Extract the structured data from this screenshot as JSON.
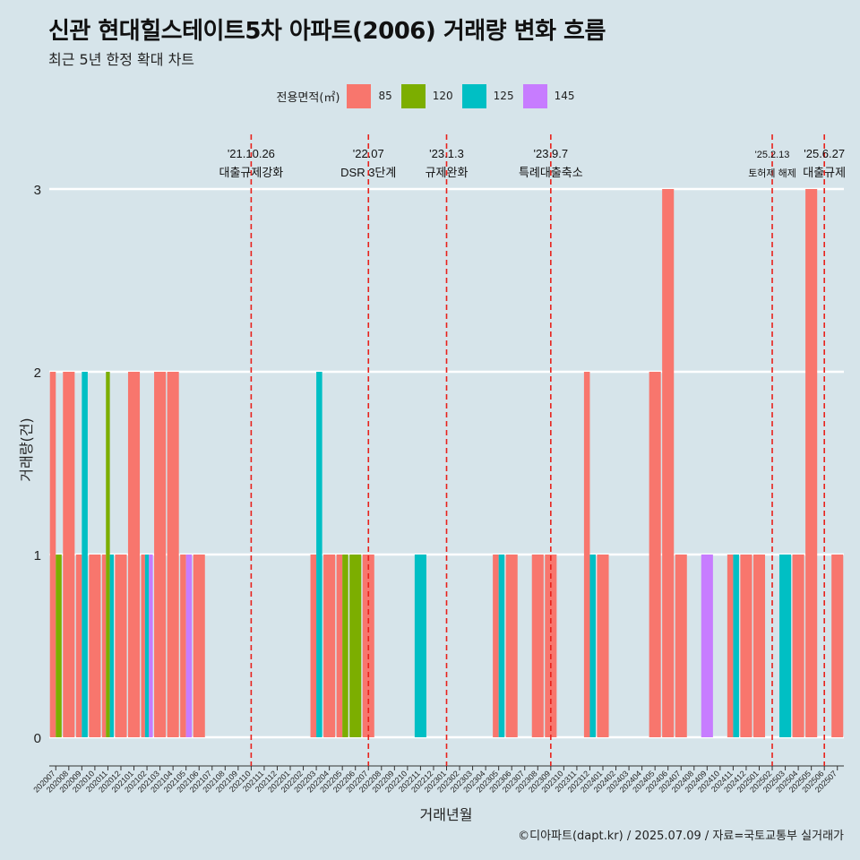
{
  "title": "신관 현대힐스테이트5차 아파트(2006) 거래량 변화 흐름",
  "subtitle": "최근 5년 한정 확대 차트",
  "caption": "©디아파트(dapt.kr) / 2025.07.09 / 자료=국토교통부 실거래가",
  "legend": {
    "title": "전용면적(㎡)",
    "items": [
      {
        "label": "85",
        "color": "#f8766d"
      },
      {
        "label": "120",
        "color": "#7cae00"
      },
      {
        "label": "125",
        "color": "#00bfc4"
      },
      {
        "label": "145",
        "color": "#c77cff"
      }
    ]
  },
  "chart_data": {
    "type": "bar",
    "subtype": "dodged",
    "xlabel": "거래년월",
    "ylabel": "거래량(건)",
    "ylim": [
      0,
      3
    ],
    "yticks": [
      0,
      1,
      2,
      3
    ],
    "grid": "horizontal",
    "categories": [
      "202007",
      "202008",
      "202009",
      "202010",
      "202011",
      "202012",
      "202101",
      "202102",
      "202103",
      "202104",
      "202105",
      "202106",
      "202107",
      "202108",
      "202109",
      "202110",
      "202111",
      "202112",
      "202201",
      "202202",
      "202203",
      "202204",
      "202205",
      "202206",
      "202207",
      "202208",
      "202209",
      "202210",
      "202211",
      "202212",
      "202301",
      "202302",
      "202303",
      "202304",
      "202305",
      "202306",
      "202307",
      "202308",
      "202309",
      "202310",
      "202311",
      "202312",
      "202401",
      "202402",
      "202403",
      "202404",
      "202405",
      "202406",
      "202407",
      "202408",
      "202409",
      "202410",
      "202411",
      "202412",
      "202501",
      "202502",
      "202503",
      "202504",
      "202505",
      "202506",
      "202507"
    ],
    "bars": [
      {
        "month": "202007",
        "area": "85",
        "value": 2
      },
      {
        "month": "202007",
        "area": "120",
        "value": 1
      },
      {
        "month": "202008",
        "area": "85",
        "value": 2
      },
      {
        "month": "202009",
        "area": "85",
        "value": 1
      },
      {
        "month": "202009",
        "area": "125",
        "value": 2
      },
      {
        "month": "202010",
        "area": "85",
        "value": 1
      },
      {
        "month": "202011",
        "area": "85",
        "value": 1
      },
      {
        "month": "202011",
        "area": "120",
        "value": 2
      },
      {
        "month": "202011",
        "area": "125",
        "value": 1
      },
      {
        "month": "202012",
        "area": "85",
        "value": 1
      },
      {
        "month": "202101",
        "area": "85",
        "value": 2
      },
      {
        "month": "202102",
        "area": "85",
        "value": 1
      },
      {
        "month": "202102",
        "area": "125",
        "value": 1
      },
      {
        "month": "202102",
        "area": "145",
        "value": 1
      },
      {
        "month": "202103",
        "area": "85",
        "value": 2
      },
      {
        "month": "202104",
        "area": "85",
        "value": 2
      },
      {
        "month": "202105",
        "area": "85",
        "value": 1
      },
      {
        "month": "202105",
        "area": "145",
        "value": 1
      },
      {
        "month": "202106",
        "area": "85",
        "value": 1
      },
      {
        "month": "202203",
        "area": "85",
        "value": 1
      },
      {
        "month": "202203",
        "area": "125",
        "value": 2
      },
      {
        "month": "202204",
        "area": "85",
        "value": 1
      },
      {
        "month": "202205",
        "area": "85",
        "value": 1
      },
      {
        "month": "202205",
        "area": "120",
        "value": 1
      },
      {
        "month": "202206",
        "area": "120",
        "value": 1
      },
      {
        "month": "202207",
        "area": "85",
        "value": 1
      },
      {
        "month": "202211",
        "area": "125",
        "value": 1
      },
      {
        "month": "202305",
        "area": "85",
        "value": 1
      },
      {
        "month": "202305",
        "area": "125",
        "value": 1
      },
      {
        "month": "202306",
        "area": "85",
        "value": 1
      },
      {
        "month": "202308",
        "area": "85",
        "value": 1
      },
      {
        "month": "202309",
        "area": "85",
        "value": 1
      },
      {
        "month": "202312",
        "area": "85",
        "value": 2
      },
      {
        "month": "202312",
        "area": "125",
        "value": 1
      },
      {
        "month": "202401",
        "area": "85",
        "value": 1
      },
      {
        "month": "202405",
        "area": "85",
        "value": 2
      },
      {
        "month": "202406",
        "area": "85",
        "value": 3
      },
      {
        "month": "202407",
        "area": "85",
        "value": 1
      },
      {
        "month": "202409",
        "area": "145",
        "value": 1
      },
      {
        "month": "202411",
        "area": "85",
        "value": 1
      },
      {
        "month": "202411",
        "area": "125",
        "value": 1
      },
      {
        "month": "202412",
        "area": "85",
        "value": 1
      },
      {
        "month": "202501",
        "area": "85",
        "value": 1
      },
      {
        "month": "202503",
        "area": "125",
        "value": 1
      },
      {
        "month": "202504",
        "area": "85",
        "value": 1
      },
      {
        "month": "202505",
        "area": "85",
        "value": 3
      },
      {
        "month": "202507",
        "area": "85",
        "value": 1
      }
    ],
    "events": [
      {
        "month": "202110",
        "date": "'21.10.26",
        "label": "대출규제강화"
      },
      {
        "month": "202207",
        "date": "'22.07",
        "label": "DSR 3단계"
      },
      {
        "month": "202301",
        "date": "'23.1.3",
        "label": "규제완화"
      },
      {
        "month": "202309",
        "date": "'23.9.7",
        "label": "특례대출축소"
      },
      {
        "month": "202502",
        "date": "'25.2.13",
        "label": "토허제 해제"
      },
      {
        "month": "202506",
        "date": "'25.6.27",
        "label": "대출규제"
      }
    ]
  }
}
